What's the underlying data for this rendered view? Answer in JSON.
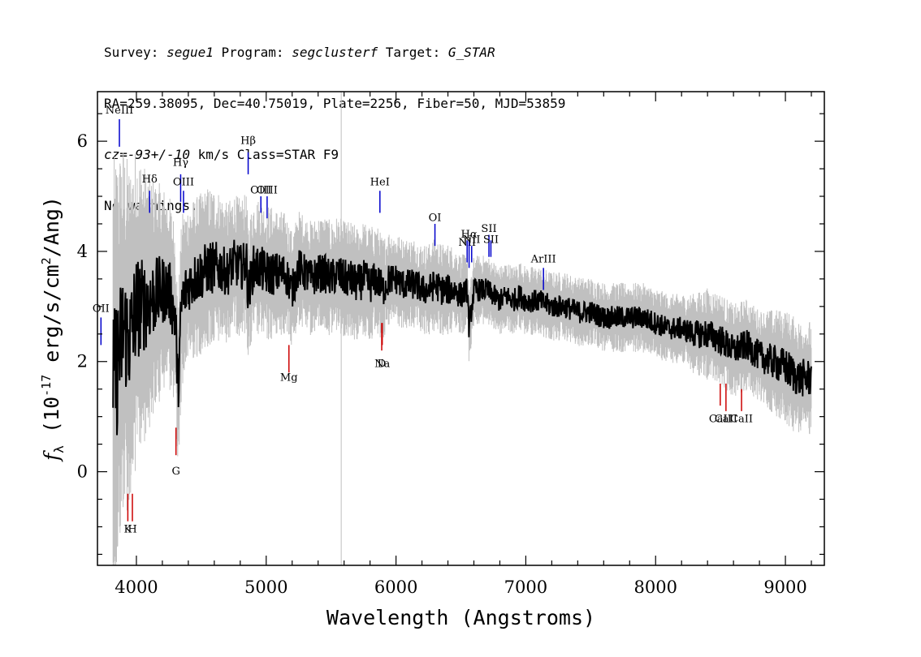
{
  "header": {
    "line1": {
      "survey_label": "Survey: ",
      "survey": "segue1",
      "program_label": " Program: ",
      "program": "segclusterf",
      "target_label": " Target: ",
      "target": "G_STAR"
    },
    "line2": "RA=259.38095, Dec=40.75019, Plate=2256, Fiber=50, MJD=53859",
    "line3": {
      "cz": "cz=-93+/-10",
      "rest": " km/s Class=STAR F9"
    },
    "line4": "No warnings."
  },
  "colors": {
    "flux": "#000000",
    "error": "#c0c0c0",
    "emission": "#0000cc",
    "absorption": "#cc0000"
  },
  "chart_data": {
    "type": "line",
    "xlabel": "Wavelength (Angstroms)",
    "ylabel": "f_λ (10^-17 erg/s/cm^2/Ang)",
    "xlim": [
      3700,
      9300
    ],
    "ylim": [
      -1.7,
      6.9
    ],
    "xticks": [
      "4000",
      "5000",
      "6000",
      "7000",
      "8000",
      "9000"
    ],
    "yticks": [
      "0",
      "2",
      "4",
      "6"
    ],
    "series": [
      {
        "role": "flux",
        "x": [
          3820,
          3900,
          3950,
          4000,
          4050,
          4100,
          4150,
          4200,
          4250,
          4300,
          4320,
          4350,
          4400,
          4450,
          4500,
          4550,
          4600,
          4650,
          4700,
          4750,
          4800,
          4850,
          4860,
          4900,
          4950,
          5000,
          5050,
          5100,
          5150,
          5200,
          5250,
          5300,
          5350,
          5400,
          5450,
          5500,
          5550,
          5600,
          5650,
          5700,
          5750,
          5800,
          5850,
          5900,
          5950,
          6000,
          6050,
          6100,
          6150,
          6200,
          6250,
          6300,
          6350,
          6400,
          6450,
          6500,
          6550,
          6563,
          6600,
          6650,
          6700,
          6750,
          6800,
          6850,
          6900,
          6950,
          7000,
          7100,
          7200,
          7300,
          7400,
          7500,
          7600,
          7700,
          7800,
          7900,
          8000,
          8100,
          8200,
          8300,
          8400,
          8500,
          8600,
          8700,
          8800,
          8900,
          9000,
          9100,
          9200
        ],
        "y": [
          1.5,
          2.6,
          2.4,
          3.0,
          3.0,
          3.1,
          3.2,
          3.3,
          3.3,
          2.8,
          1.5,
          3.1,
          3.4,
          3.5,
          3.6,
          3.7,
          3.7,
          3.7,
          3.6,
          3.8,
          3.7,
          3.8,
          3.2,
          3.7,
          3.7,
          3.6,
          3.6,
          3.6,
          3.6,
          3.3,
          3.7,
          3.6,
          3.5,
          3.6,
          3.6,
          3.5,
          3.6,
          3.5,
          3.5,
          3.4,
          3.5,
          3.4,
          3.5,
          3.3,
          3.5,
          3.5,
          3.4,
          3.4,
          3.4,
          3.3,
          3.3,
          3.4,
          3.3,
          3.3,
          3.3,
          3.2,
          3.3,
          2.6,
          3.3,
          3.3,
          3.3,
          3.2,
          3.1,
          3.2,
          3.1,
          3.2,
          3.1,
          3.1,
          3.0,
          3.0,
          2.9,
          2.9,
          2.8,
          2.8,
          2.8,
          2.8,
          2.7,
          2.6,
          2.6,
          2.5,
          2.5,
          2.4,
          2.2,
          2.3,
          2.1,
          2.0,
          1.9,
          1.7,
          1.7
        ]
      },
      {
        "role": "error",
        "x": [
          3820,
          3900,
          3950,
          4000,
          4100,
          4200,
          4300,
          4400,
          4500,
          4600,
          4700,
          4800,
          4900,
          5000,
          5200,
          5400,
          5600,
          5800,
          6000,
          6200,
          6400,
          6600,
          6800,
          7000,
          7200,
          7400,
          7600,
          7800,
          8000,
          8200,
          8400,
          8600,
          8800,
          9000,
          9200
        ],
        "y": [
          2.0,
          1.6,
          1.5,
          1.4,
          1.1,
          0.9,
          0.8,
          0.7,
          0.7,
          0.7,
          0.6,
          0.6,
          0.6,
          0.6,
          0.5,
          0.5,
          0.5,
          0.5,
          0.4,
          0.4,
          0.4,
          0.3,
          0.3,
          0.3,
          0.3,
          0.3,
          0.3,
          0.3,
          0.3,
          0.3,
          0.4,
          0.4,
          0.4,
          0.5,
          0.5
        ]
      }
    ],
    "emission_lines": [
      {
        "label": "NeIII",
        "x": 3869,
        "y1": 5.9,
        "y2": 6.4,
        "ly": 6.5
      },
      {
        "label": "Hδ",
        "x": 4102,
        "y1": 4.7,
        "y2": 5.1,
        "ly": 5.25
      },
      {
        "label": "Hγ",
        "x": 4341,
        "y1": 4.9,
        "y2": 5.4,
        "ly": 5.55
      },
      {
        "label": "OIII",
        "x": 4363,
        "y1": 4.7,
        "y2": 5.1,
        "ly": 5.2
      },
      {
        "label": "Hβ",
        "x": 4861,
        "y1": 5.4,
        "y2": 5.8,
        "ly": 5.95
      },
      {
        "label": "OIII",
        "x": 4959,
        "y1": 4.7,
        "y2": 5.0,
        "ly": 5.05
      },
      {
        "label": "OIII",
        "x": 5007,
        "y1": 4.6,
        "y2": 5.0,
        "ly": 5.05
      },
      {
        "label": "HeI",
        "x": 5876,
        "y1": 4.7,
        "y2": 5.1,
        "ly": 5.2
      },
      {
        "label": "OI",
        "x": 6300,
        "y1": 4.1,
        "y2": 4.5,
        "ly": 4.55
      },
      {
        "label": "NII",
        "x": 6548,
        "y1": 3.8,
        "y2": 4.2,
        "ly": 4.1
      },
      {
        "label": "Hα",
        "x": 6563,
        "y1": 3.7,
        "y2": 4.2,
        "ly": 4.25
      },
      {
        "label": "NII",
        "x": 6583,
        "y1": 3.8,
        "y2": 4.1,
        "ly": 4.15
      },
      {
        "label": "SII",
        "x": 6716,
        "y1": 3.9,
        "y2": 4.3,
        "ly": 4.35
      },
      {
        "label": "SII",
        "x": 6731,
        "y1": 3.9,
        "y2": 4.2,
        "ly": 4.15
      },
      {
        "label": "ArIII",
        "x": 7136,
        "y1": 3.3,
        "y2": 3.7,
        "ly": 3.8
      },
      {
        "label": "OII",
        "x": 3727,
        "y1": 2.3,
        "y2": 2.8,
        "ly": 2.9
      }
    ],
    "absorption_lines": [
      {
        "label": "K",
        "x": 3934,
        "y1": -0.9,
        "y2": -0.4,
        "ly": -1.1
      },
      {
        "label": "H",
        "x": 3969,
        "y1": -0.9,
        "y2": -0.4,
        "ly": -1.1
      },
      {
        "label": "G",
        "x": 4305,
        "y1": 0.3,
        "y2": 0.8,
        "ly": -0.05
      },
      {
        "label": "Mg",
        "x": 5175,
        "y1": 1.8,
        "y2": 2.3,
        "ly": 1.65
      },
      {
        "label": "Na",
        "x": 5894,
        "y1": 2.3,
        "y2": 2.7,
        "ly": 1.9
      },
      {
        "label": "D",
        "x": 5890,
        "y1": 2.2,
        "y2": 2.7,
        "ly": 1.9
      },
      {
        "label": "CaII",
        "x": 8498,
        "y1": 1.2,
        "y2": 1.6,
        "ly": 0.9
      },
      {
        "label": "CaII",
        "x": 8542,
        "y1": 1.1,
        "y2": 1.6,
        "ly": 0.9
      },
      {
        "label": "CaII",
        "x": 8662,
        "y1": 1.1,
        "y2": 1.5,
        "ly": 0.9
      }
    ]
  }
}
